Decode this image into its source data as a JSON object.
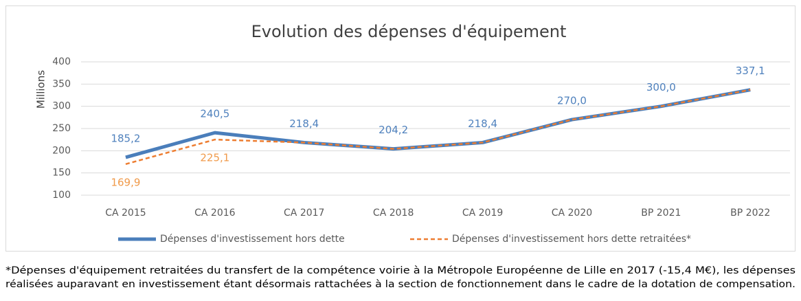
{
  "chart_data": {
    "type": "line",
    "title": "Evolution des dépenses d'équipement",
    "y_label": "Millions",
    "categories": [
      "CA 2015",
      "CA 2016",
      "CA 2017",
      "CA 2018",
      "CA 2019",
      "CA 2020",
      "BP 2021",
      "BP 2022"
    ],
    "series": [
      {
        "name": "Dépenses d'investissement hors dette",
        "color": "#4a7ebb",
        "label_color": "#4f81bd",
        "values": [
          185.2,
          240.5,
          218.4,
          204.2,
          218.4,
          270.0,
          300.0,
          337.1
        ],
        "value_labels": [
          "185,2",
          "240,5",
          "218,4",
          "204,2",
          "218,4",
          "270,0",
          "300,0",
          "337,1"
        ]
      },
      {
        "name": "Dépenses d'investissement hors dette retraitées*",
        "color": "#ed7d31",
        "label_color": "#f09a4a",
        "dashed": true,
        "values": [
          169.9,
          225.1,
          218.4,
          204.2,
          218.4,
          270.0,
          300.0,
          337.1
        ],
        "value_labels": [
          "169,9",
          "225,1",
          null,
          null,
          null,
          null,
          null,
          null
        ]
      }
    ],
    "ylim": [
      100,
      400
    ],
    "yticks": [
      100,
      150,
      200,
      250,
      300,
      350,
      400
    ],
    "grid": true,
    "legend": "bottom",
    "footnote": [
      "*Dépenses d'équipement retraitées du transfert de la compétence voirie à la Métropole Européenne de Lille en 2017 (-15,4 M€), les dépenses",
      "réalisées auparavant en investissement étant désormais rattachées à la section de fonctionnement dans le cadre de la dotation de compensation."
    ]
  }
}
